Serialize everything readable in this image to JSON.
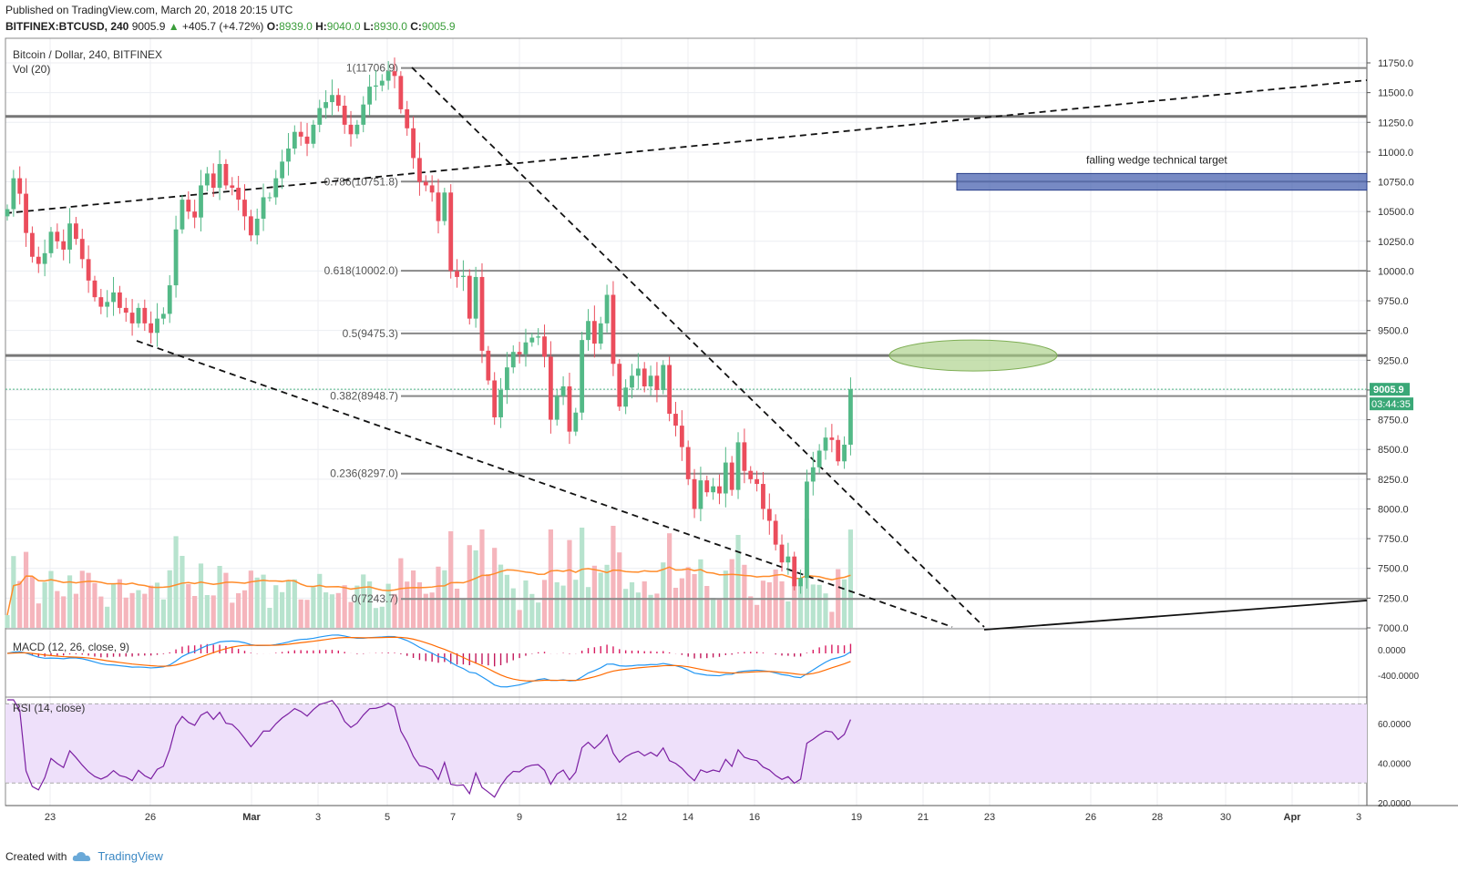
{
  "header": {
    "published": "Published on TradingView.com, March 20, 2018 20:15 UTC",
    "symbol": "BITFINEX:BTCUSD, 240",
    "last": "9005.9",
    "change": "+405.7 (+4.72%)",
    "o_label": "O:",
    "o": "8939.0",
    "h_label": "H:",
    "h": "9040.0",
    "l_label": "L:",
    "l": "8930.0",
    "c_label": "C:",
    "c": "9005.9"
  },
  "footer": {
    "created_with": "Created with",
    "brand": "TradingView"
  },
  "panes": {
    "main_title": "Bitcoin / Dollar, 240, BITFINEX",
    "vol_title": "Vol (20)",
    "macd_title": "MACD (12, 26, close, 9)",
    "rsi_title": "RSI (14, close)"
  },
  "annotations": {
    "target_label": "falling wedge technical target",
    "last_price_tag": "9005.9",
    "countdown_tag": "03:44:35"
  },
  "colors": {
    "up": "#53b987",
    "down": "#eb4d5c",
    "vol_up": "#b7e3ce",
    "vol_down": "#f5b5bc",
    "target_box": "#4a63b0",
    "ellipse": "#a9cf86",
    "macd": "#2196f3",
    "signal": "#ff6a00",
    "rsi": "#7b1fa2",
    "rsi_band": "#eee0fa"
  },
  "chart_data": {
    "type": "candlestick",
    "price_axis": {
      "ticks": [
        "11750.0",
        "11500.0",
        "11250.0",
        "11000.0",
        "10750.0",
        "10500.0",
        "10250.0",
        "10000.0",
        "9750.0",
        "9500.0",
        "9250.0",
        "9000.0",
        "8750.0",
        "8500.0",
        "8250.0",
        "8000.0",
        "7750.0",
        "7500.0",
        "7250.0",
        "7000.0"
      ],
      "range": [
        7000,
        11750
      ]
    },
    "x_axis_ticks": [
      "23",
      "26",
      "Mar",
      "3",
      "5",
      "7",
      "9",
      "12",
      "14",
      "16",
      "19",
      "21",
      "23",
      "26",
      "28",
      "30",
      "Apr",
      "3"
    ],
    "fib_levels": [
      {
        "label": "1(11706.9)",
        "value": 11706.9
      },
      {
        "label": "0.786(10751.8)",
        "value": 10751.8
      },
      {
        "label": "0.618(10002.0)",
        "value": 10002.0
      },
      {
        "label": "0.5(9475.3)",
        "value": 9475.3
      },
      {
        "label": "0.382(8948.7)",
        "value": 8948.7
      },
      {
        "label": "0.236(8297.0)",
        "value": 8297.0
      },
      {
        "label": "0(7243.7)",
        "value": 7243.7
      }
    ],
    "horizontal_levels": [
      11300,
      9290
    ],
    "target_zone": [
      10680,
      10820
    ],
    "last_price": 9005.9,
    "closes": [
      10520,
      10780,
      10650,
      10320,
      10120,
      10060,
      10150,
      10330,
      10250,
      10180,
      10400,
      10270,
      10100,
      9920,
      9780,
      9700,
      9740,
      9820,
      9690,
      9650,
      9560,
      9690,
      9560,
      9480,
      9600,
      9640,
      9880,
      10350,
      10600,
      10500,
      10450,
      10720,
      10820,
      10700,
      10900,
      10720,
      10700,
      10600,
      10460,
      10300,
      10440,
      10620,
      10620,
      10780,
      10920,
      11030,
      11170,
      11130,
      11070,
      11230,
      11370,
      11420,
      11480,
      11390,
      11230,
      11150,
      11230,
      11400,
      11550,
      11560,
      11600,
      11680,
      11640,
      11360,
      11200,
      10950,
      10750,
      10720,
      10660,
      10420,
      10660,
      10000,
      9950,
      9960,
      9600,
      9950,
      9330,
      9080,
      8770,
      9000,
      9190,
      9320,
      9300,
      9400,
      9440,
      9450,
      9280,
      8750,
      8950,
      9030,
      8650,
      8810,
      9420,
      9580,
      9390,
      9560,
      9800,
      9220,
      8860,
      9020,
      9120,
      9180,
      9030,
      9120,
      9000,
      9210,
      8800,
      8700,
      8520,
      8250,
      8000,
      8240,
      8140,
      8190,
      8130,
      8390,
      8160,
      8560,
      8320,
      8250,
      8210,
      8000,
      7900,
      7700,
      7550,
      7600,
      7350,
      7420,
      8230,
      8350,
      8490,
      8600,
      8580,
      8400,
      8540,
      9005.9
    ],
    "macd_axis": [
      "0.0000",
      "-400.0000"
    ],
    "rsi_axis": [
      "60.0000",
      "40.0000",
      "20.0000"
    ],
    "rsi_band": [
      30,
      70
    ]
  }
}
